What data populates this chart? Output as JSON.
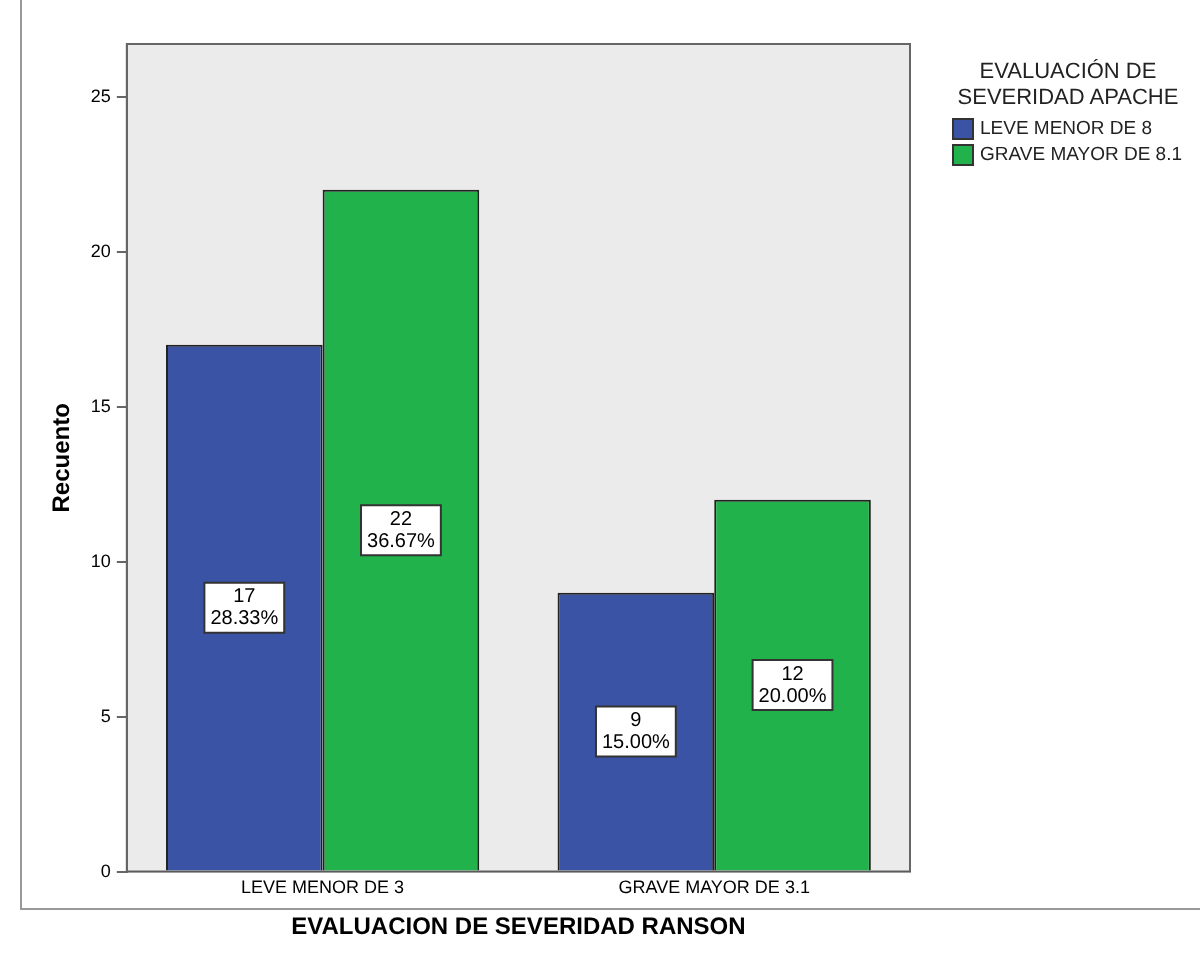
{
  "chart_data": {
    "type": "bar",
    "xlabel": "EVALUACION DE SEVERIDAD RANSON",
    "ylabel": "Recuento",
    "legend_title": "EVALUACIÓN DE SEVERIDAD APACHE",
    "categories": [
      "LEVE MENOR DE 3",
      "GRAVE MAYOR DE 3.1"
    ],
    "series": [
      {
        "name": "LEVE MENOR DE 8",
        "color": "#3a53a4",
        "values": [
          17,
          9
        ],
        "value_labels": [
          "17\n28.33%",
          "9\n15.00%"
        ]
      },
      {
        "name": "GRAVE MAYOR DE 8.1",
        "color": "#21b24b",
        "values": [
          22,
          12
        ],
        "value_labels": [
          "22\n36.67%",
          "12\n20.00%"
        ]
      }
    ],
    "ylim": [
      0,
      26.7
    ],
    "yticks": [
      0,
      5,
      10,
      15,
      20,
      25
    ],
    "grid": false,
    "legend": "right"
  }
}
